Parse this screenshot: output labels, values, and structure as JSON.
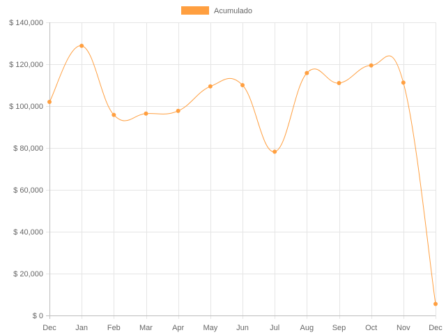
{
  "chart_data": {
    "type": "line",
    "categories": [
      "Dec",
      "Jan",
      "Feb",
      "Mar",
      "Apr",
      "May",
      "Jun",
      "Jul",
      "Aug",
      "Sep",
      "Oct",
      "Nov",
      "Dec"
    ],
    "series": [
      {
        "name": "Acumulado",
        "color": "#ff9f40",
        "values": [
          102000,
          128800,
          95800,
          96400,
          97700,
          109400,
          110000,
          78200,
          115800,
          111000,
          119400,
          111200,
          5500
        ]
      }
    ],
    "y_ticks": [
      "$ 0",
      "$ 20,000",
      "$ 40,000",
      "$ 60,000",
      "$ 80,000",
      "$ 100,000",
      "$ 120,000",
      "$ 140,000"
    ],
    "ylim": [
      0,
      140000
    ],
    "y_step": 20000,
    "grid": true,
    "legend_position": "top",
    "interpolation": "smooth"
  }
}
